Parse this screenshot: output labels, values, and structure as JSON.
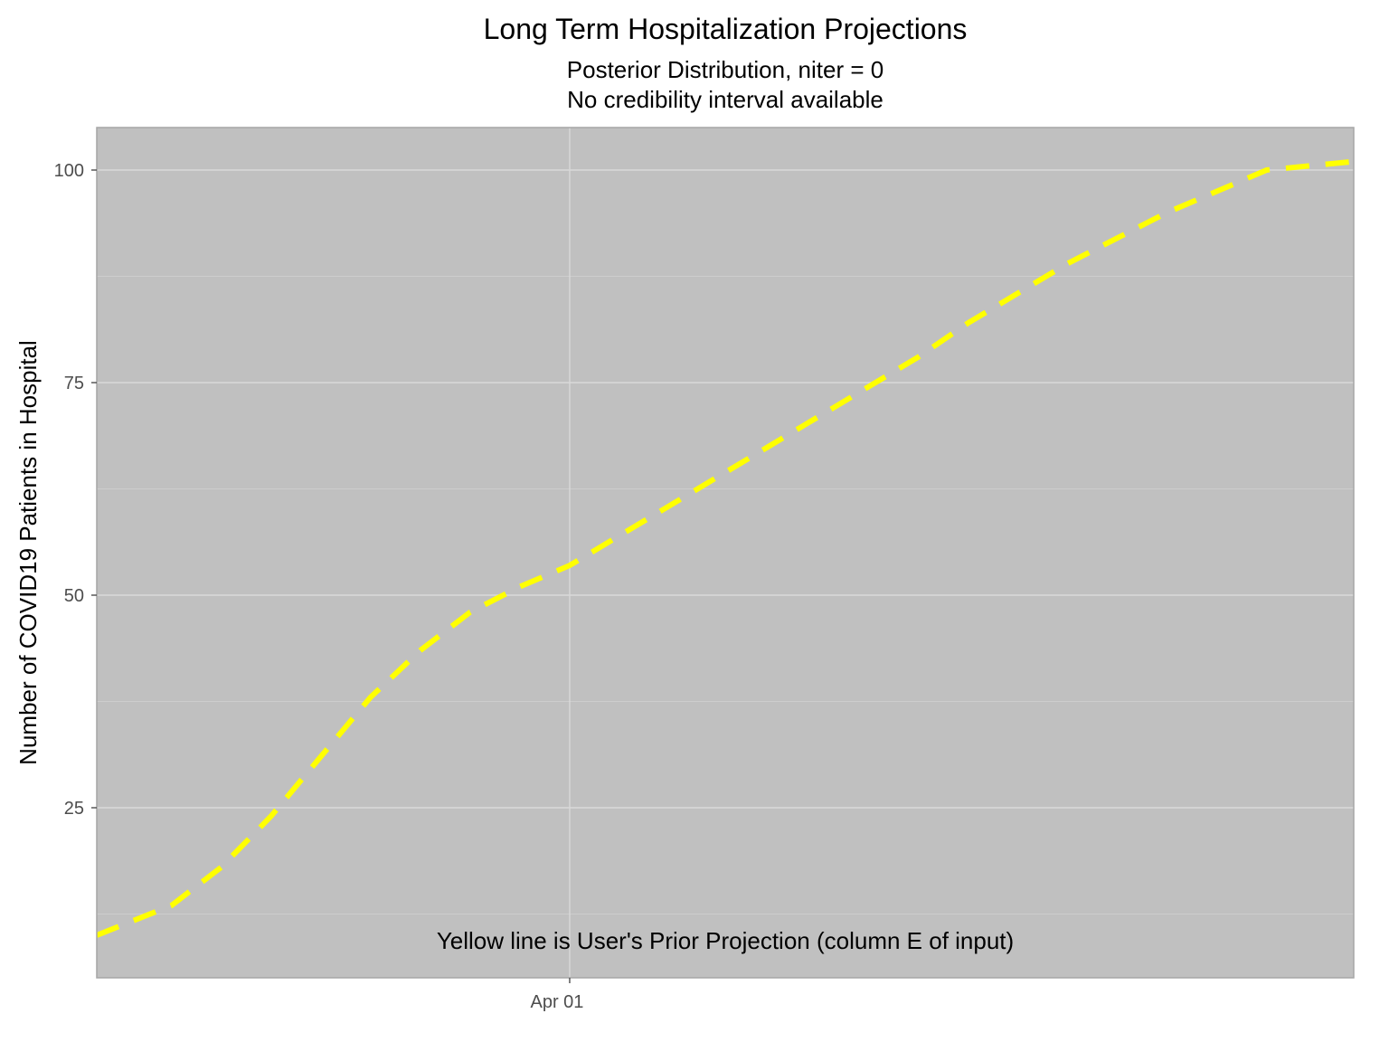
{
  "chart_data": {
    "type": "line",
    "title": "Long Term Hospitalization Projections",
    "subtitle_lines": [
      "Posterior Distribution, niter = 0",
      "No credibility interval available"
    ],
    "xlabel": "",
    "ylabel": "Number of COVID19 Patients in Hospital",
    "x_ticks": [
      {
        "label": "Apr 01",
        "day": 0
      }
    ],
    "xlim_days": [
      -19,
      31.5
    ],
    "ylim": [
      5,
      105
    ],
    "y_ticks": [
      25,
      50,
      75,
      100
    ],
    "y_minor": [
      12.5,
      37.5,
      62.5,
      87.5
    ],
    "grid": true,
    "annotation": "Yellow line is User's Prior Projection (column E of input)",
    "colors": {
      "panel": "#c0c0c0",
      "grid": "#d9d9d9",
      "line": "#ffff00"
    },
    "series": [
      {
        "style": "dashed",
        "color": "#ffff00",
        "points": [
          {
            "day": -19,
            "y": 10
          },
          {
            "day": -16,
            "y": 13.5
          },
          {
            "day": -14,
            "y": 18
          },
          {
            "day": -12,
            "y": 24
          },
          {
            "day": -10,
            "y": 31
          },
          {
            "day": -8,
            "y": 38
          },
          {
            "day": -6,
            "y": 43.5
          },
          {
            "day": -4,
            "y": 48
          },
          {
            "day": -2,
            "y": 51
          },
          {
            "day": 0,
            "y": 53.5
          },
          {
            "day": 2,
            "y": 57
          },
          {
            "day": 4,
            "y": 60.5
          },
          {
            "day": 6,
            "y": 64
          },
          {
            "day": 8,
            "y": 67.5
          },
          {
            "day": 10,
            "y": 71
          },
          {
            "day": 12,
            "y": 74.5
          },
          {
            "day": 14,
            "y": 78
          },
          {
            "day": 16,
            "y": 82
          },
          {
            "day": 18,
            "y": 85.5
          },
          {
            "day": 20,
            "y": 89
          },
          {
            "day": 22,
            "y": 92
          },
          {
            "day": 24,
            "y": 95
          },
          {
            "day": 26,
            "y": 97.5
          },
          {
            "day": 28,
            "y": 100
          },
          {
            "day": 31.5,
            "y": 101
          }
        ]
      }
    ]
  }
}
